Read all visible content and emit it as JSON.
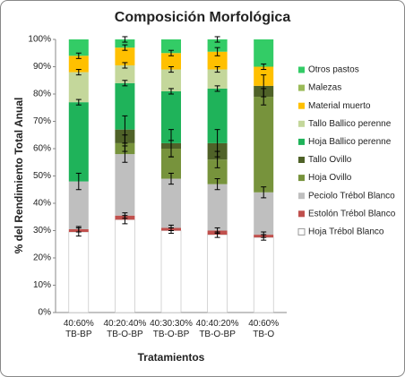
{
  "chart_data": {
    "type": "stacked_bar",
    "title": "Composición Morfológica",
    "x_label": "Tratamientos",
    "y_label": "% del Rendimiento Total Anual",
    "categories": [
      "40:60% TB-BP",
      "40:20:40% TB-O-BP",
      "40:30:30% TB-O-BP",
      "40:40:20% TB-O-BP",
      "40:60% TB-O"
    ],
    "ylim": [
      0,
      100
    ],
    "yticks": [
      {
        "value": 0,
        "label": "0%"
      },
      {
        "value": 10,
        "label": "10%"
      },
      {
        "value": 20,
        "label": "20%"
      },
      {
        "value": 30,
        "label": "30%"
      },
      {
        "value": 40,
        "label": "40%"
      },
      {
        "value": 50,
        "label": "50%"
      },
      {
        "value": 60,
        "label": "60%"
      },
      {
        "value": 70,
        "label": "70%"
      },
      {
        "value": 80,
        "label": "80%"
      },
      {
        "value": 90,
        "label": "90%"
      },
      {
        "value": 100,
        "label": "100%"
      }
    ],
    "legend": "right",
    "series": [
      {
        "name": "Hoja Trébol Blanco",
        "color": "#ffffff",
        "values": [
          29.5,
          34,
          30,
          28.5,
          27.5
        ],
        "errors": [
          1.5,
          1.5,
          1,
          1,
          1
        ]
      },
      {
        "name": "Estolón Trébol Blanco",
        "color": "#c0504d",
        "values": [
          1,
          1.5,
          1,
          1.5,
          1
        ],
        "errors": [
          1,
          1,
          1,
          1,
          1
        ]
      },
      {
        "name": "Peciolo Trébol Blanco",
        "color": "#bfbfbf",
        "values": [
          17.5,
          22.5,
          18,
          17,
          15.5
        ],
        "errors": [
          3,
          3,
          2,
          2,
          2
        ]
      },
      {
        "name": "Hoja Ovillo",
        "color": "#77933c",
        "values": [
          0,
          4,
          11,
          9,
          35
        ],
        "errors": [
          null,
          3,
          3,
          3,
          3
        ]
      },
      {
        "name": "Tallo Ovillo",
        "color": "#4f6228",
        "values": [
          0,
          5,
          2,
          6,
          4
        ],
        "errors": [
          null,
          5,
          5,
          5,
          4
        ]
      },
      {
        "name": "Hoja Ballico perenne",
        "color": "#1fb35a",
        "values": [
          29,
          17,
          19,
          20,
          0
        ],
        "errors": [
          1,
          1,
          1,
          1,
          null
        ]
      },
      {
        "name": "Tallo Ballico perenne",
        "color": "#c4d79b",
        "values": [
          11,
          6.5,
          8,
          7,
          0
        ],
        "errors": [
          1,
          1,
          1,
          1,
          null
        ]
      },
      {
        "name": "Material muerto",
        "color": "#ffc000",
        "values": [
          6,
          6.5,
          6,
          6.5,
          7
        ],
        "errors": [
          1,
          1,
          1,
          1.5,
          1
        ]
      },
      {
        "name": "Malezas",
        "color": "#9bbb59",
        "values": [
          0,
          0,
          0,
          0,
          0
        ],
        "errors": [
          null,
          null,
          null,
          null,
          null
        ]
      },
      {
        "name": "Otros pastos",
        "color": "#33cc66",
        "values": [
          6,
          3,
          5,
          4.5,
          10
        ],
        "errors": [
          null,
          1,
          null,
          1,
          null
        ]
      }
    ]
  }
}
